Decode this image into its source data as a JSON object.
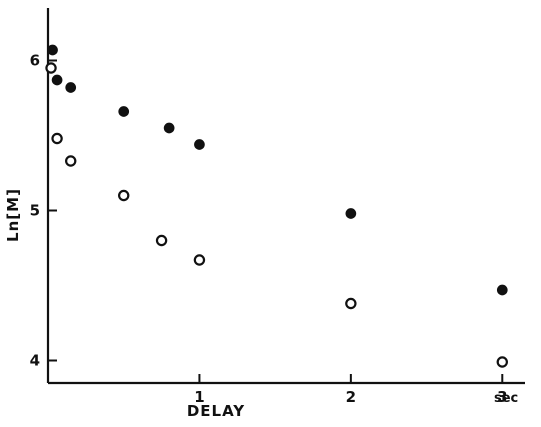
{
  "chart_data": {
    "type": "scatter",
    "title": "",
    "xlabel": "DELAY",
    "ylabel": "Ln[M]",
    "x_unit": "sec",
    "xlim": [
      0,
      3.15
    ],
    "ylim": [
      3.85,
      6.35
    ],
    "x_ticks": [
      1,
      2,
      3
    ],
    "x_tick_labels": [
      "1",
      "2",
      "3"
    ],
    "y_ticks": [
      4,
      5,
      6
    ],
    "y_tick_labels": [
      "4",
      "5",
      "6"
    ],
    "grid": false,
    "legend": "none",
    "series": [
      {
        "marker": "filled-circle",
        "x": [
          0.03,
          0.06,
          0.15,
          0.5,
          0.8,
          1.0,
          2.0,
          3.0
        ],
        "y": [
          6.07,
          5.87,
          5.82,
          5.66,
          5.55,
          5.44,
          4.98,
          4.47
        ]
      },
      {
        "marker": "open-circle",
        "x": [
          0.02,
          0.06,
          0.15,
          0.5,
          0.75,
          1.0,
          2.0,
          3.0
        ],
        "y": [
          5.95,
          5.48,
          5.33,
          5.1,
          4.8,
          4.67,
          4.38,
          3.99
        ]
      }
    ]
  }
}
